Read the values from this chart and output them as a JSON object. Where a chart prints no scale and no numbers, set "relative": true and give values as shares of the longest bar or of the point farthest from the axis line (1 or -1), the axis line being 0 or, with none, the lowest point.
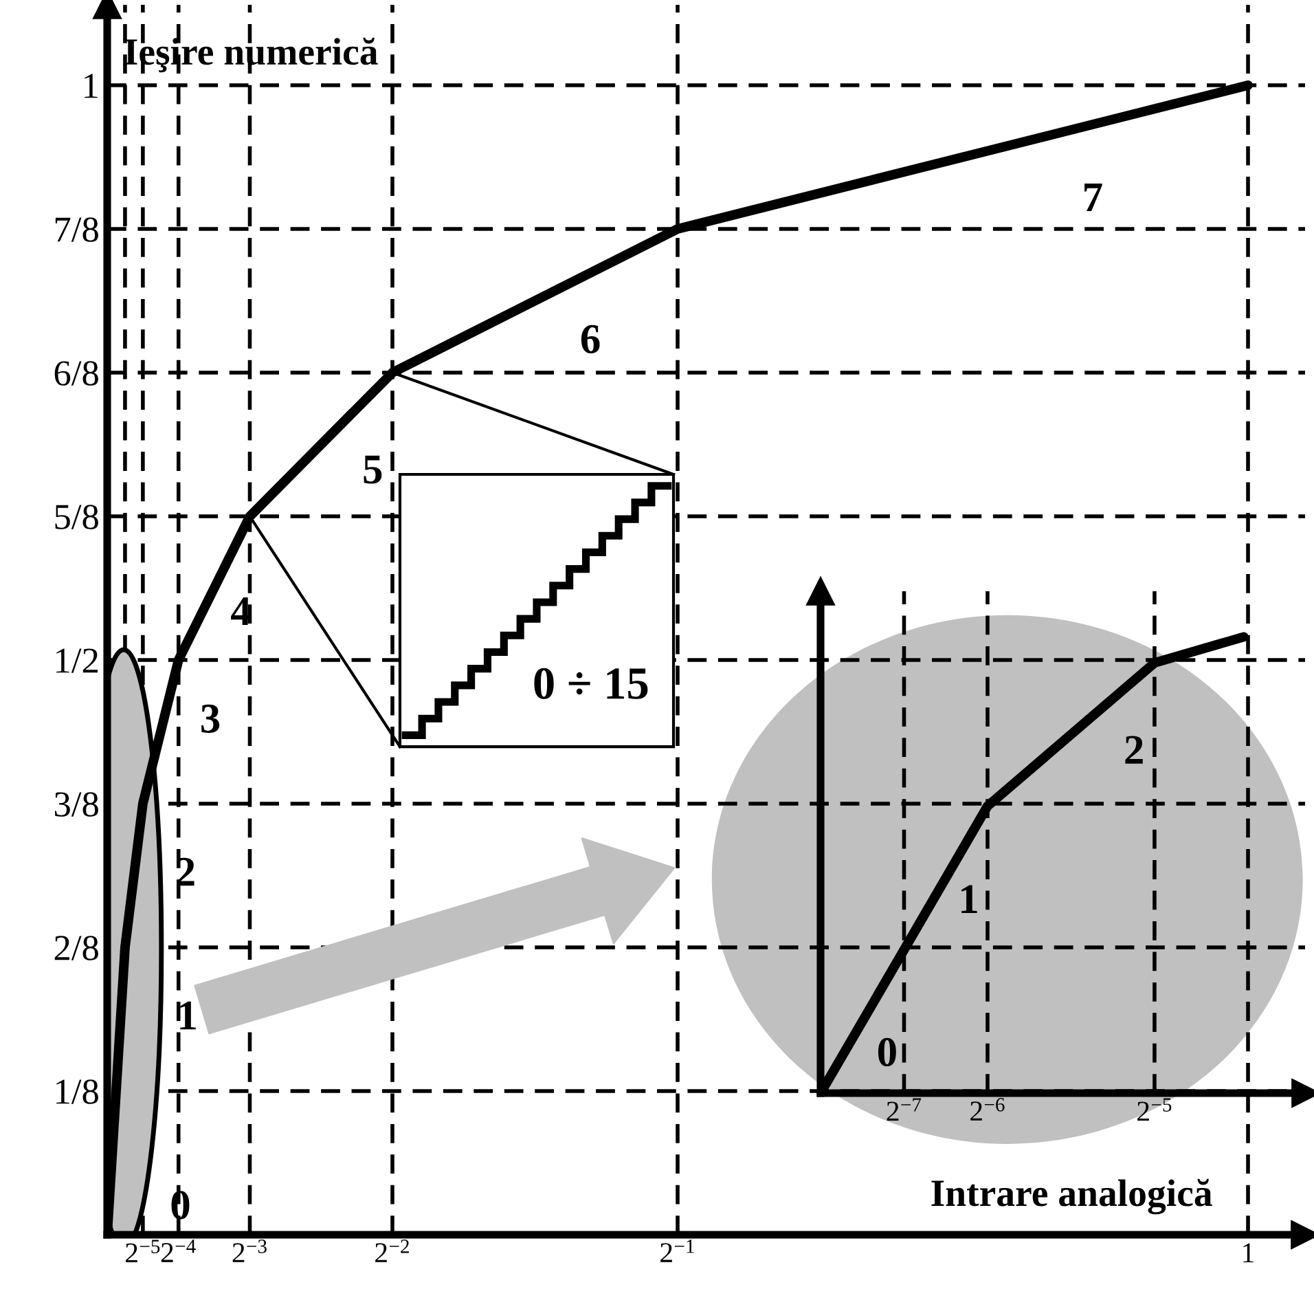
{
  "chart_data": [
    {
      "type": "line",
      "xlabel": "Intrare analogică",
      "ylabel": "Ieşire numerică",
      "x": [
        0,
        0.0078125,
        0.015625,
        0.03125,
        0.0625,
        0.125,
        0.25,
        0.5,
        1
      ],
      "series": [
        {
          "color": "#000000",
          "values": [
            0,
            0.125,
            0.25,
            0.375,
            0.5,
            0.625,
            0.75,
            0.875,
            1
          ]
        }
      ],
      "xlim": [
        0,
        1.05
      ],
      "ylim": [
        0,
        1.07
      ],
      "xticks": [
        {
          "value": 0.015625,
          "label": null
        },
        {
          "value": 0.03125,
          "label": "2$^{−5}$"
        },
        {
          "value": 0.0625,
          "label": "2$^{−4}$"
        },
        {
          "value": 0.125,
          "label": "2$^{−3}$"
        },
        {
          "value": 0.25,
          "label": "2$^{−2}$"
        },
        {
          "value": 0.5,
          "label": "2$^{−1}$"
        },
        {
          "value": 1,
          "label": "1"
        }
      ],
      "yticks": [
        {
          "value": 0.125,
          "label": "1/8"
        },
        {
          "value": 0.25,
          "label": "2/8"
        },
        {
          "value": 0.375,
          "label": "3/8"
        },
        {
          "value": 0.5,
          "label": "1/2"
        },
        {
          "value": 0.625,
          "label": "5/8"
        },
        {
          "value": 0.75,
          "label": "6/8"
        },
        {
          "value": 0.875,
          "label": "7/8"
        },
        {
          "value": 1,
          "label": "1"
        }
      ],
      "grid": true,
      "line_style": "solid",
      "marker": "none",
      "annotations": [
        "0",
        "1",
        "2",
        "3",
        "4",
        "5",
        "6",
        "7",
        "0 ÷ 15"
      ]
    },
    {
      "type": "line",
      "relative": true,
      "x": [
        0,
        0.0078125,
        0.015625,
        0.03125,
        0.0396
      ],
      "series": [
        {
          "color": "#000000",
          "values": [
            0,
            0.314,
            0.629,
            0.943,
            1
          ]
        }
      ],
      "xlim": [
        0,
        0.0454
      ],
      "xticks": [
        {
          "value": 0.0078125,
          "label": "2$^{−7}$"
        },
        {
          "value": 0.015625,
          "label": "2$^{−6}$"
        },
        {
          "value": 0.03125,
          "label": "2$^{−5}$"
        }
      ],
      "grid": "x",
      "line_style": "solid",
      "marker": "none",
      "annotations": [
        "0",
        "1",
        "2"
      ]
    }
  ]
}
